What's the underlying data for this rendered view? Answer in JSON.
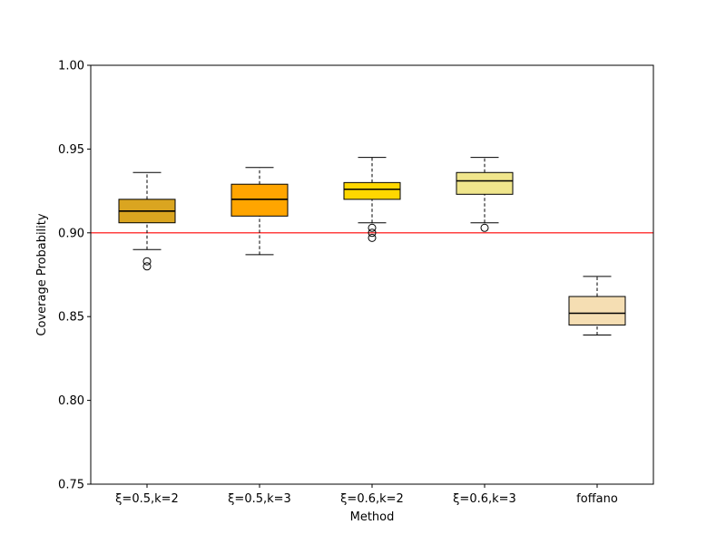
{
  "chart_data": {
    "type": "boxplot",
    "title": "",
    "xlabel": "Method",
    "ylabel": "Coverage Probability",
    "ylim": [
      0.75,
      1.0
    ],
    "yticks": [
      "0.75",
      "0.80",
      "0.85",
      "0.90",
      "0.95",
      "1.00"
    ],
    "ytick_values": [
      0.75,
      0.8,
      0.85,
      0.9,
      0.95,
      1.0
    ],
    "reference_line": {
      "y": 0.9,
      "color": "#ff0000"
    },
    "grid": false,
    "categories": [
      "ξ=0.5,k=2",
      "ξ=0.5,k=3",
      "ξ=0.6,k=2",
      "ξ=0.6,k=3",
      "foffano"
    ],
    "boxes": [
      {
        "label": "ξ=0.5,k=2",
        "whisker_low": 0.89,
        "q1": 0.906,
        "median": 0.913,
        "q3": 0.92,
        "whisker_high": 0.936,
        "outliers": [
          0.883,
          0.88
        ],
        "color": "#DAA520"
      },
      {
        "label": "ξ=0.5,k=3",
        "whisker_low": 0.887,
        "q1": 0.91,
        "median": 0.92,
        "q3": 0.929,
        "whisker_high": 0.939,
        "outliers": [],
        "color": "#FFA500"
      },
      {
        "label": "ξ=0.6,k=2",
        "whisker_low": 0.906,
        "q1": 0.92,
        "median": 0.926,
        "q3": 0.93,
        "whisker_high": 0.945,
        "outliers": [
          0.903,
          0.9,
          0.897
        ],
        "color": "#FFD700"
      },
      {
        "label": "ξ=0.6,k=3",
        "whisker_low": 0.906,
        "q1": 0.923,
        "median": 0.931,
        "q3": 0.936,
        "whisker_high": 0.945,
        "outliers": [
          0.903
        ],
        "color": "#F0E68C"
      },
      {
        "label": "foffano",
        "whisker_low": 0.839,
        "q1": 0.845,
        "median": 0.852,
        "q3": 0.862,
        "whisker_high": 0.874,
        "outliers": [],
        "color": "#F5DEB3"
      }
    ]
  }
}
